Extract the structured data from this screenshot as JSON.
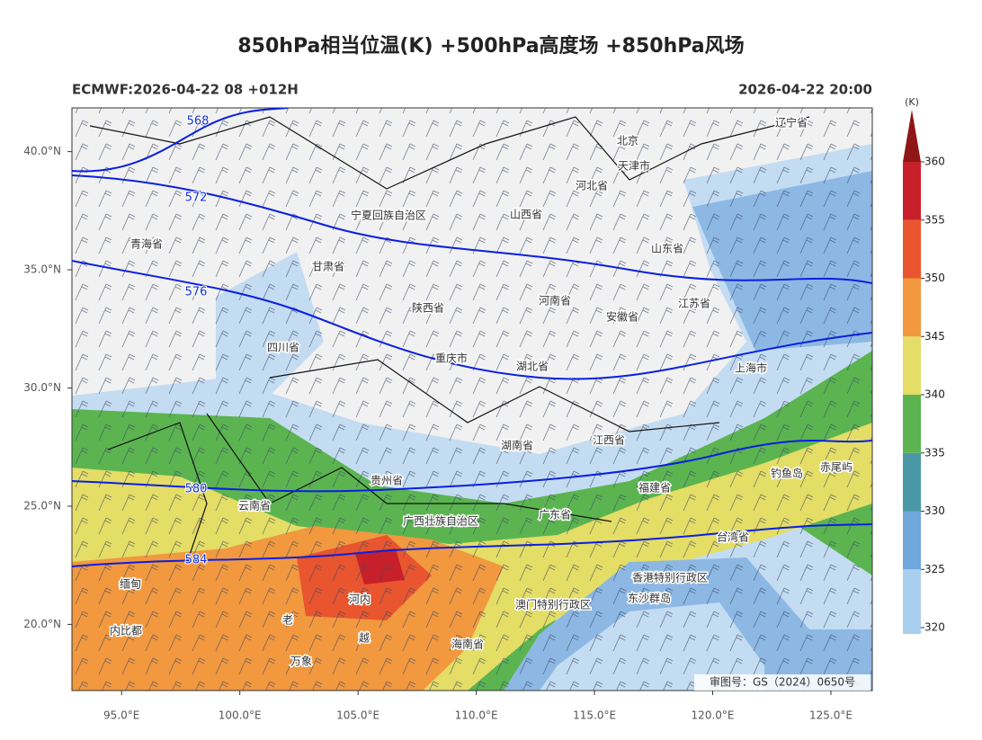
{
  "map": {
    "title": "850hPa相当位温(K) +500hPa高度场 +850hPa风场",
    "subtitle_left": "ECMWF:2026-04-22 08 +012H",
    "subtitle_right": "2026-04-22 20:00",
    "xlim": [
      92.9,
      126.75
    ],
    "ylim": [
      17.2,
      41.85
    ],
    "xticks": [
      {
        "value": 95,
        "label": "95.0°E"
      },
      {
        "value": 100,
        "label": "100.0°E"
      },
      {
        "value": 105,
        "label": "105.0°E"
      },
      {
        "value": 110,
        "label": "110.0°E"
      },
      {
        "value": 115,
        "label": "115.0°E"
      },
      {
        "value": 120,
        "label": "120.0°E"
      },
      {
        "value": 125,
        "label": "125.0°E"
      }
    ],
    "yticks": [
      {
        "value": 20,
        "label": "20.0°N"
      },
      {
        "value": 25,
        "label": "25.0°N"
      },
      {
        "value": 30,
        "label": "30.0°N"
      },
      {
        "value": 35,
        "label": "35.0°N"
      },
      {
        "value": 40,
        "label": "40.0°N"
      }
    ],
    "height_contours": [
      568,
      572,
      576,
      580,
      584
    ],
    "colorbar": {
      "unit": "(K)",
      "ticks": [
        320,
        325,
        330,
        335,
        340,
        345,
        350,
        355,
        360
      ],
      "colors": [
        "#a9cfef",
        "#6fa6dc",
        "#4a98a6",
        "#5bb450",
        "#e4dd66",
        "#f2983f",
        "#e8552e",
        "#c8202a"
      ],
      "over_color": "#8e1616"
    },
    "places": [
      "青海省",
      "甘肃省",
      "宁夏回族自治区",
      "山西省",
      "河北省",
      "北京",
      "天津市",
      "山东省",
      "辽宁省",
      "陕西省",
      "河南省",
      "安徽省",
      "江苏省",
      "上海市",
      "四川省",
      "重庆市",
      "湖北省",
      "湖南省",
      "江西省",
      "贵州省",
      "福建省",
      "云南省",
      "广西壮族自治区",
      "广东省",
      "台湾省",
      "香港特别行政区",
      "澳门特别行政区",
      "东沙群岛",
      "海南省",
      "钓鱼岛",
      "赤尾屿",
      "缅甸",
      "老",
      "越",
      "河内",
      "内比都",
      "万象"
    ],
    "footer": "审图号：GS（2024）0650号"
  }
}
